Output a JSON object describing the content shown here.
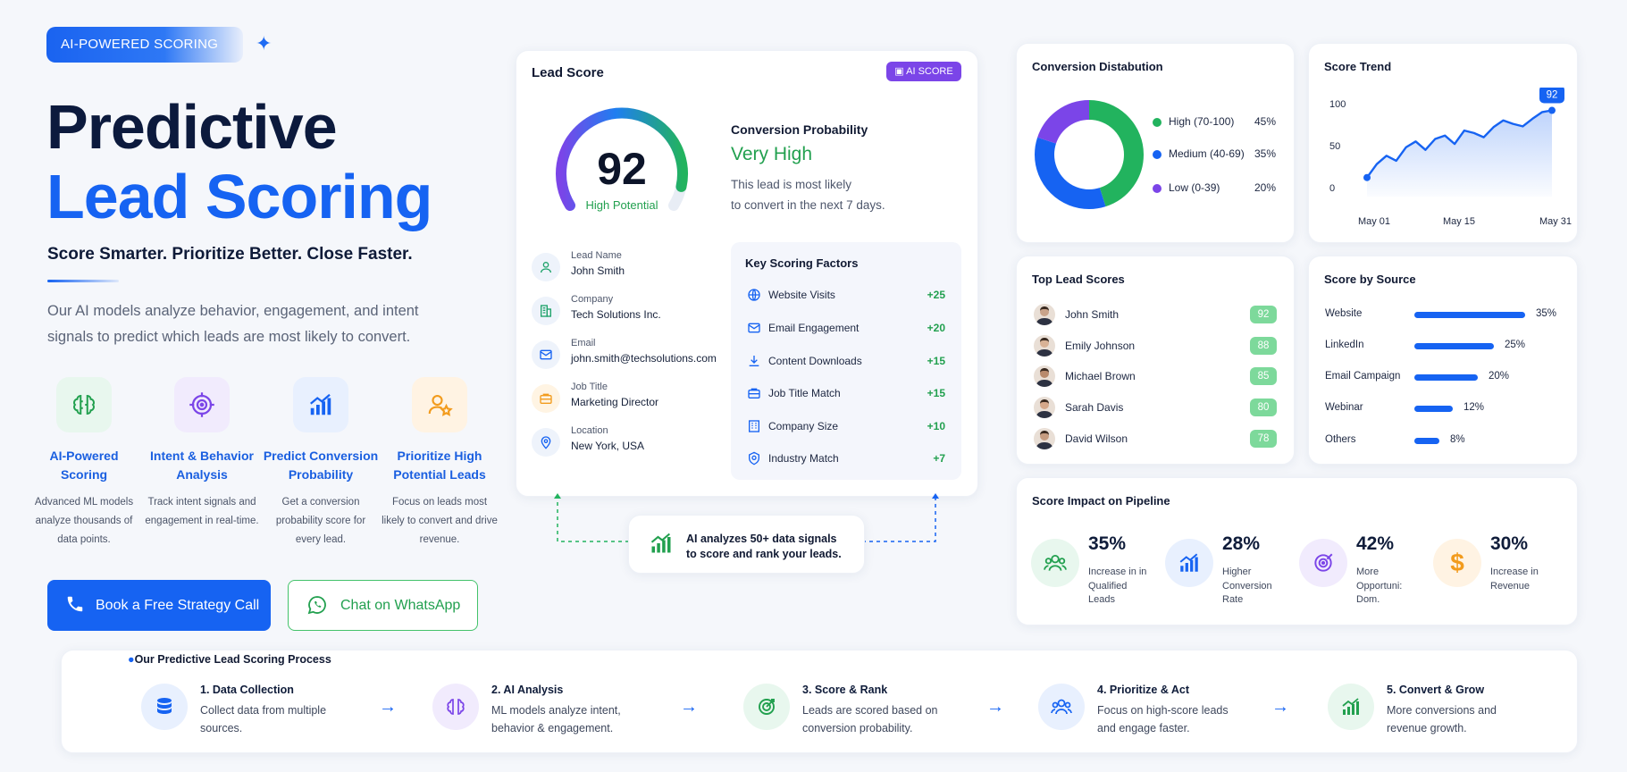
{
  "hero": {
    "badge": "AI-POWERED SCORING",
    "title_line1": "Predictive",
    "title_line2": "Lead Scoring",
    "tagline": "Score Smarter. Prioritize Better. Close Faster.",
    "description": "Our AI models analyze behavior, engagement, and intent signals to predict which leads are most likely to convert."
  },
  "features": [
    {
      "icon": "brain-icon",
      "title": "AI-Powered Scoring",
      "desc": "Advanced ML models analyze thousands of data points."
    },
    {
      "icon": "target-icon",
      "title": "Intent & Behavior Analysis",
      "desc": "Track intent signals and engagement in real-time."
    },
    {
      "icon": "chart-up-icon",
      "title": "Predict Conversion Probability",
      "desc": "Get a conversion probability score for every lead."
    },
    {
      "icon": "user-star-icon",
      "title": "Prioritize High Potential Leads",
      "desc": "Focus on leads most likely to convert and drive revenue."
    }
  ],
  "buttons": {
    "call": "Book a Free Strategy Call",
    "whatsapp": "Chat on WhatsApp"
  },
  "lead_card": {
    "title": "Lead Score",
    "badge": "AI SCORE",
    "score": "92",
    "score_fraction": 0.92,
    "score_label": "High Potential",
    "prob_title": "Conversion Probability",
    "prob_value": "Very High",
    "prob_desc_1": "This lead is most likely",
    "prob_desc_2": "to convert in the next 7 days.",
    "info": [
      {
        "icon": "user-icon",
        "label": "Lead Name",
        "value": "John Smith"
      },
      {
        "icon": "building-icon",
        "label": "Company",
        "value": "Tech Solutions Inc."
      },
      {
        "icon": "mail-icon",
        "label": "Email",
        "value": "john.smith@techsolutions.com"
      },
      {
        "icon": "briefcase-icon",
        "label": "Job Title",
        "value": "Marketing Director"
      },
      {
        "icon": "location-icon",
        "label": "Location",
        "value": "New York, USA"
      }
    ],
    "factors_title": "Key Scoring Factors",
    "factors": [
      {
        "icon": "globe-icon",
        "label": "Website Visits",
        "value": "+25"
      },
      {
        "icon": "mail-icon",
        "label": "Email Engagement",
        "value": "+20"
      },
      {
        "icon": "download-icon",
        "label": "Content Downloads",
        "value": "+15"
      },
      {
        "icon": "briefcase-icon",
        "label": "Job Title Match",
        "value": "+15"
      },
      {
        "icon": "building-icon",
        "label": "Company Size",
        "value": "+10"
      },
      {
        "icon": "industry-icon",
        "label": "Industry Match",
        "value": "+7"
      }
    ]
  },
  "ai_note": {
    "line1": "AI analyzes 50+ data signals",
    "line2": "to score and rank your leads."
  },
  "conversion": {
    "title": "Conversion Distabution",
    "chart_data": {
      "type": "pie",
      "series": [
        {
          "name": "High (70-100)",
          "value": 45,
          "label": "45%",
          "color": "#22b35e"
        },
        {
          "name": "Medium (40-69)",
          "value": 35,
          "label": "35%",
          "color": "#1663f2"
        },
        {
          "name": "Low (0-39)",
          "value": 20,
          "label": "20%",
          "color": "#7b45e8"
        }
      ]
    }
  },
  "trend": {
    "title": "Score Trend",
    "badge": "92",
    "chart_data": {
      "type": "area",
      "y_ticks": [
        "100",
        "50",
        "0"
      ],
      "ylim": [
        0,
        100
      ],
      "x_ticks": [
        "May 01",
        "May 15",
        "May 31"
      ],
      "values": [
        12,
        28,
        38,
        32,
        48,
        55,
        45,
        58,
        62,
        52,
        68,
        65,
        60,
        72,
        80,
        76,
        73,
        82,
        90,
        92
      ]
    }
  },
  "top_leads": {
    "title": "Top Lead Scores",
    "items": [
      {
        "name": "John Smith",
        "score": "92"
      },
      {
        "name": "Emily Johnson",
        "score": "88"
      },
      {
        "name": "Michael Brown",
        "score": "85"
      },
      {
        "name": "Sarah Davis",
        "score": "80"
      },
      {
        "name": "David Wilson",
        "score": "78"
      }
    ]
  },
  "source": {
    "title": "Score by Source",
    "chart_data": {
      "type": "bar",
      "categories": [
        "Website",
        "LinkedIn",
        "Email Campaign",
        "Webinar",
        "Others"
      ],
      "values": [
        35,
        25,
        20,
        12,
        8
      ],
      "labels": [
        "35%",
        "25%",
        "20%",
        "12%",
        "8%"
      ]
    }
  },
  "impact": {
    "title": "Score Impact on Pipeline",
    "items": [
      {
        "icon": "users-icon",
        "value": "35%",
        "label": "Increase in in Qualified Leads"
      },
      {
        "icon": "chart-up-icon",
        "value": "28%",
        "label": "Higher Conversion Rate"
      },
      {
        "icon": "target-icon",
        "value": "42%",
        "label": "More Opportuni: Dom."
      },
      {
        "icon": "dollar-icon",
        "value": "30%",
        "label": "Increase in Revenue"
      }
    ]
  },
  "process": {
    "title": "Our Predictive Lead Scoring Process",
    "steps": [
      {
        "icon": "database-icon",
        "title": "1. Data Collection",
        "desc": "Collect data from multiple sources."
      },
      {
        "icon": "brain-icon",
        "title": "2. AI Analysis",
        "desc": "ML models analyze intent, behavior & engagement."
      },
      {
        "icon": "target-icon",
        "title": "3. Score & Rank",
        "desc": "Leads are scored based on conversion probability."
      },
      {
        "icon": "users-icon",
        "title": "4. Prioritize & Act",
        "desc": "Focus on high-score leads and engage faster."
      },
      {
        "icon": "chart-up-icon",
        "title": "5. Convert & Grow",
        "desc": "More conversions and revenue growth."
      }
    ]
  }
}
